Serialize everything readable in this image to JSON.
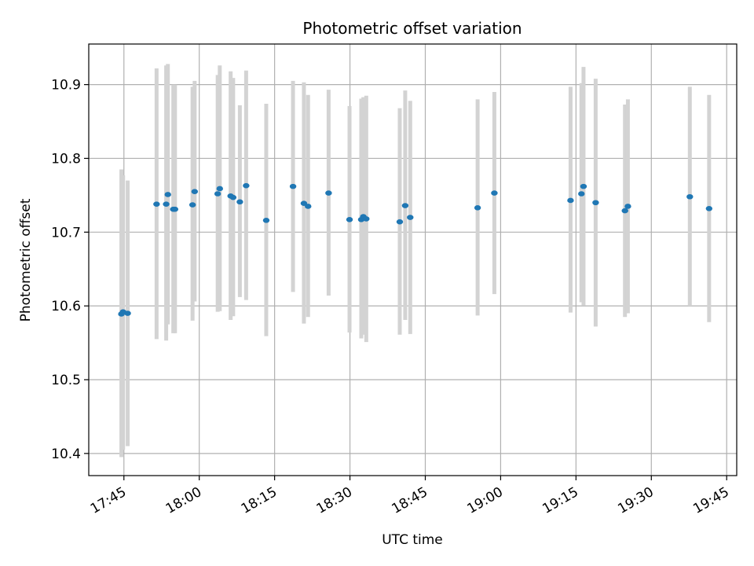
{
  "chart_data": {
    "type": "scatter",
    "title": "Photometric offset variation",
    "xlabel": "UTC time",
    "ylabel": "Photometric offset",
    "x_ticks": [
      "17:45",
      "18:00",
      "18:15",
      "18:30",
      "18:45",
      "19:00",
      "19:15",
      "19:30",
      "19:45"
    ],
    "y_ticks": [
      "10.4",
      "10.5",
      "10.6",
      "10.7",
      "10.8",
      "10.9"
    ],
    "xlim": [
      "17:38",
      "19:47"
    ],
    "ylim": [
      10.37,
      10.955
    ],
    "grid": true,
    "colors": {
      "marker": "#1f77b4",
      "errorbar": "#d3d3d3",
      "grid": "#b0b0b0"
    },
    "points": [
      {
        "x": "17:44:30",
        "y": 10.589,
        "lo": 10.395,
        "hi": 10.785
      },
      {
        "x": "17:44:50",
        "y": 10.592,
        "lo": 10.405,
        "hi": 10.777
      },
      {
        "x": "17:45:45",
        "y": 10.59,
        "lo": 10.41,
        "hi": 10.77
      },
      {
        "x": "17:51:30",
        "y": 10.738,
        "lo": 10.555,
        "hi": 10.922
      },
      {
        "x": "17:53:25",
        "y": 10.738,
        "lo": 10.553,
        "hi": 10.926
      },
      {
        "x": "17:53:45",
        "y": 10.751,
        "lo": 10.575,
        "hi": 10.928
      },
      {
        "x": "17:54:50",
        "y": 10.731,
        "lo": 10.563,
        "hi": 10.9
      },
      {
        "x": "17:55:10",
        "y": 10.731,
        "lo": 10.563,
        "hi": 10.9
      },
      {
        "x": "17:58:40",
        "y": 10.737,
        "lo": 10.58,
        "hi": 10.897
      },
      {
        "x": "17:59:05",
        "y": 10.755,
        "lo": 10.606,
        "hi": 10.905
      },
      {
        "x": "18:03:40",
        "y": 10.752,
        "lo": 10.592,
        "hi": 10.913
      },
      {
        "x": "18:04:05",
        "y": 10.759,
        "lo": 10.593,
        "hi": 10.926
      },
      {
        "x": "18:06:15",
        "y": 10.749,
        "lo": 10.581,
        "hi": 10.918
      },
      {
        "x": "18:06:45",
        "y": 10.747,
        "lo": 10.586,
        "hi": 10.909
      },
      {
        "x": "18:08:05",
        "y": 10.741,
        "lo": 10.612,
        "hi": 10.872
      },
      {
        "x": "18:09:20",
        "y": 10.763,
        "lo": 10.608,
        "hi": 10.919
      },
      {
        "x": "18:13:20",
        "y": 10.716,
        "lo": 10.559,
        "hi": 10.874
      },
      {
        "x": "18:18:40",
        "y": 10.762,
        "lo": 10.619,
        "hi": 10.905
      },
      {
        "x": "18:20:50",
        "y": 10.739,
        "lo": 10.576,
        "hi": 10.903
      },
      {
        "x": "18:21:40",
        "y": 10.735,
        "lo": 10.585,
        "hi": 10.886
      },
      {
        "x": "18:25:45",
        "y": 10.753,
        "lo": 10.614,
        "hi": 10.893
      },
      {
        "x": "18:29:55",
        "y": 10.717,
        "lo": 10.564,
        "hi": 10.871
      },
      {
        "x": "18:32:15",
        "y": 10.717,
        "lo": 10.556,
        "hi": 10.881
      },
      {
        "x": "18:32:40",
        "y": 10.721,
        "lo": 10.561,
        "hi": 10.883
      },
      {
        "x": "18:33:15",
        "y": 10.718,
        "lo": 10.551,
        "hi": 10.885
      },
      {
        "x": "18:39:55",
        "y": 10.714,
        "lo": 10.561,
        "hi": 10.868
      },
      {
        "x": "18:41:00",
        "y": 10.736,
        "lo": 10.581,
        "hi": 10.892
      },
      {
        "x": "18:42:00",
        "y": 10.72,
        "lo": 10.562,
        "hi": 10.878
      },
      {
        "x": "18:55:25",
        "y": 10.733,
        "lo": 10.587,
        "hi": 10.88
      },
      {
        "x": "18:58:45",
        "y": 10.753,
        "lo": 10.616,
        "hi": 10.89
      },
      {
        "x": "19:13:55",
        "y": 10.743,
        "lo": 10.591,
        "hi": 10.897
      },
      {
        "x": "19:16:05",
        "y": 10.752,
        "lo": 10.605,
        "hi": 10.902
      },
      {
        "x": "19:16:30",
        "y": 10.762,
        "lo": 10.601,
        "hi": 10.924
      },
      {
        "x": "19:18:55",
        "y": 10.74,
        "lo": 10.572,
        "hi": 10.908
      },
      {
        "x": "19:24:45",
        "y": 10.729,
        "lo": 10.585,
        "hi": 10.873
      },
      {
        "x": "19:25:20",
        "y": 10.735,
        "lo": 10.59,
        "hi": 10.88
      },
      {
        "x": "19:37:40",
        "y": 10.748,
        "lo": 10.6,
        "hi": 10.897
      },
      {
        "x": "19:41:30",
        "y": 10.732,
        "lo": 10.578,
        "hi": 10.886
      }
    ]
  }
}
